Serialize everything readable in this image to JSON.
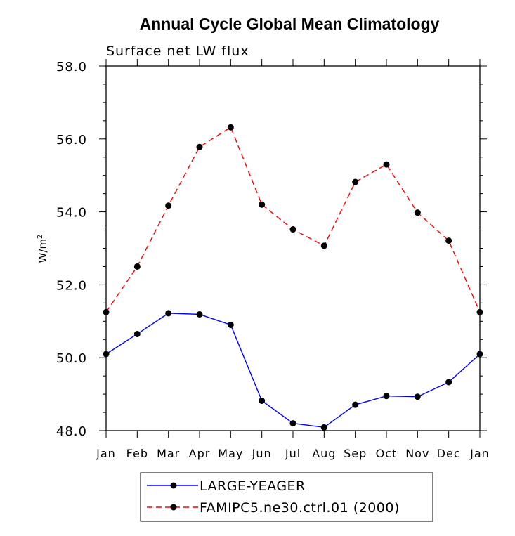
{
  "chart_data": {
    "type": "line",
    "title": "Annual Cycle Global Mean Climatology",
    "subtitle": "Surface net LW flux",
    "xlabel": "",
    "ylabel": "W/m",
    "ylabel_superscript": "2",
    "ylim": [
      48.0,
      58.0
    ],
    "yticks": [
      48.0,
      50.0,
      52.0,
      54.0,
      56.0,
      58.0
    ],
    "ytick_labels": [
      "48.0",
      "50.0",
      "52.0",
      "54.0",
      "56.0",
      "58.0"
    ],
    "categories": [
      "Jan",
      "Feb",
      "Mar",
      "Apr",
      "May",
      "Jun",
      "Jul",
      "Aug",
      "Sep",
      "Oct",
      "Nov",
      "Dec",
      "Jan"
    ],
    "series": [
      {
        "name": "LARGE-YEAGER",
        "color": "#0000ff",
        "dash": "solid",
        "values": [
          50.1,
          50.65,
          51.22,
          51.19,
          50.9,
          48.82,
          48.2,
          48.09,
          48.71,
          48.95,
          48.93,
          49.33,
          50.1
        ]
      },
      {
        "name": "FAMIPC5.ne30.ctrl.01 (2000)",
        "color": "#ff0000",
        "dash": "dashed",
        "values": [
          51.25,
          52.5,
          54.17,
          55.78,
          56.32,
          54.2,
          53.52,
          53.07,
          54.82,
          55.3,
          53.98,
          53.21,
          51.25
        ]
      }
    ],
    "legend_position": "bottom-center"
  }
}
